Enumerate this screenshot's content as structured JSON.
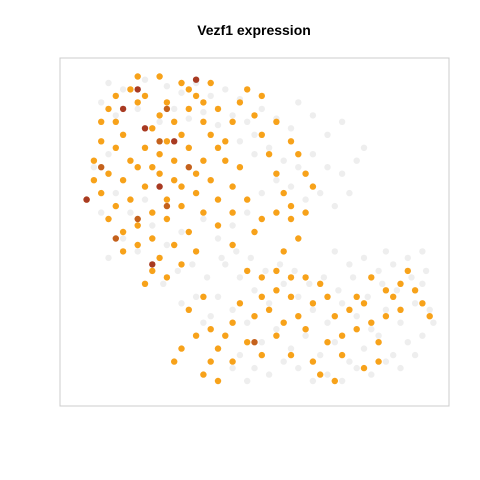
{
  "chart_data": {
    "type": "scatter",
    "title": "Vezf1 expression",
    "xlabel": "",
    "ylabel": "",
    "xlim": [
      0,
      100
    ],
    "ylim": [
      0,
      100
    ],
    "grid": false,
    "axes_ticks": false,
    "legend": "none",
    "colors": {
      "background_cells": "#eeeeee",
      "expressed": "#f7a21a",
      "high": "#a83a22",
      "mid": "#c4611c",
      "frame": "#cccccc"
    },
    "series": [
      {
        "level": "low",
        "color": "#eeeeee",
        "points": [
          [
            10,
            96
          ],
          [
            14,
            94
          ],
          [
            20,
            97
          ],
          [
            26,
            95
          ],
          [
            30,
            93
          ],
          [
            34,
            96
          ],
          [
            38,
            92
          ],
          [
            42,
            94
          ],
          [
            46,
            91
          ],
          [
            8,
            90
          ],
          [
            12,
            86
          ],
          [
            18,
            88
          ],
          [
            24,
            84
          ],
          [
            28,
            88
          ],
          [
            32,
            85
          ],
          [
            36,
            87
          ],
          [
            40,
            83
          ],
          [
            44,
            86
          ],
          [
            48,
            84
          ],
          [
            50,
            80
          ],
          [
            52,
            88
          ],
          [
            56,
            85
          ],
          [
            60,
            82
          ],
          [
            62,
            90
          ],
          [
            66,
            86
          ],
          [
            70,
            80
          ],
          [
            74,
            84
          ],
          [
            46,
            78
          ],
          [
            50,
            74
          ],
          [
            54,
            76
          ],
          [
            58,
            72
          ],
          [
            62,
            70
          ],
          [
            66,
            74
          ],
          [
            70,
            70
          ],
          [
            74,
            68
          ],
          [
            78,
            72
          ],
          [
            80,
            76
          ],
          [
            56,
            66
          ],
          [
            60,
            64
          ],
          [
            64,
            60
          ],
          [
            68,
            62
          ],
          [
            72,
            58
          ],
          [
            76,
            62
          ],
          [
            52,
            62
          ],
          [
            48,
            56
          ],
          [
            44,
            52
          ],
          [
            40,
            48
          ],
          [
            36,
            54
          ],
          [
            30,
            50
          ],
          [
            26,
            46
          ],
          [
            22,
            52
          ],
          [
            18,
            44
          ],
          [
            14,
            48
          ],
          [
            10,
            42
          ],
          [
            16,
            56
          ],
          [
            20,
            60
          ],
          [
            12,
            62
          ],
          [
            8,
            56
          ],
          [
            6,
            70
          ],
          [
            10,
            74
          ],
          [
            42,
            40
          ],
          [
            46,
            36
          ],
          [
            50,
            32
          ],
          [
            54,
            28
          ],
          [
            58,
            34
          ],
          [
            62,
            30
          ],
          [
            66,
            26
          ],
          [
            70,
            22
          ],
          [
            74,
            28
          ],
          [
            78,
            24
          ],
          [
            82,
            20
          ],
          [
            86,
            26
          ],
          [
            90,
            22
          ],
          [
            94,
            28
          ],
          [
            96,
            34
          ],
          [
            98,
            26
          ],
          [
            92,
            16
          ],
          [
            88,
            12
          ],
          [
            84,
            18
          ],
          [
            80,
            14
          ],
          [
            76,
            10
          ],
          [
            72,
            16
          ],
          [
            68,
            12
          ],
          [
            64,
            18
          ],
          [
            60,
            14
          ],
          [
            56,
            20
          ],
          [
            52,
            16
          ],
          [
            48,
            22
          ],
          [
            44,
            26
          ],
          [
            40,
            30
          ],
          [
            38,
            24
          ],
          [
            42,
            18
          ],
          [
            46,
            12
          ],
          [
            50,
            8
          ],
          [
            54,
            6
          ],
          [
            58,
            10
          ],
          [
            62,
            8
          ],
          [
            66,
            4
          ],
          [
            70,
            6
          ],
          [
            74,
            4
          ],
          [
            78,
            8
          ],
          [
            82,
            6
          ],
          [
            86,
            10
          ],
          [
            90,
            8
          ],
          [
            94,
            12
          ],
          [
            96,
            18
          ],
          [
            99,
            22
          ],
          [
            97,
            38
          ],
          [
            93,
            36
          ],
          [
            89,
            32
          ],
          [
            85,
            34
          ],
          [
            81,
            30
          ],
          [
            77,
            36
          ],
          [
            73,
            32
          ],
          [
            69,
            36
          ],
          [
            65,
            34
          ],
          [
            61,
            38
          ],
          [
            57,
            40
          ],
          [
            53,
            38
          ],
          [
            49,
            42
          ],
          [
            45,
            44
          ],
          [
            41,
            42
          ],
          [
            37,
            36
          ],
          [
            33,
            40
          ],
          [
            29,
            38
          ],
          [
            25,
            34
          ],
          [
            34,
            30
          ],
          [
            30,
            28
          ],
          [
            36,
            22
          ],
          [
            40,
            14
          ],
          [
            44,
            8
          ],
          [
            48,
            4
          ],
          [
            84,
            38
          ],
          [
            88,
            40
          ],
          [
            92,
            42
          ],
          [
            96,
            44
          ],
          [
            86,
            44
          ],
          [
            80,
            42
          ],
          [
            76,
            40
          ],
          [
            72,
            44
          ]
        ]
      },
      {
        "level": "expressed",
        "color": "#f7a21a",
        "points": [
          [
            10,
            88
          ],
          [
            12,
            84
          ],
          [
            14,
            80
          ],
          [
            8,
            78
          ],
          [
            6,
            72
          ],
          [
            10,
            68
          ],
          [
            14,
            66
          ],
          [
            18,
            70
          ],
          [
            20,
            76
          ],
          [
            22,
            82
          ],
          [
            24,
            86
          ],
          [
            18,
            90
          ],
          [
            16,
            94
          ],
          [
            20,
            92
          ],
          [
            26,
            90
          ],
          [
            28,
            84
          ],
          [
            30,
            80
          ],
          [
            32,
            76
          ],
          [
            28,
            72
          ],
          [
            24,
            68
          ],
          [
            20,
            64
          ],
          [
            16,
            60
          ],
          [
            12,
            58
          ],
          [
            8,
            62
          ],
          [
            6,
            66
          ],
          [
            4,
            60
          ],
          [
            10,
            54
          ],
          [
            14,
            50
          ],
          [
            18,
            52
          ],
          [
            22,
            56
          ],
          [
            26,
            60
          ],
          [
            30,
            64
          ],
          [
            34,
            68
          ],
          [
            36,
            72
          ],
          [
            32,
            88
          ],
          [
            34,
            92
          ],
          [
            36,
            84
          ],
          [
            38,
            80
          ],
          [
            40,
            76
          ],
          [
            42,
            72
          ],
          [
            38,
            66
          ],
          [
            34,
            62
          ],
          [
            30,
            58
          ],
          [
            26,
            54
          ],
          [
            22,
            48
          ],
          [
            18,
            46
          ],
          [
            14,
            44
          ],
          [
            24,
            42
          ],
          [
            28,
            46
          ],
          [
            32,
            50
          ],
          [
            36,
            56
          ],
          [
            40,
            60
          ],
          [
            44,
            64
          ],
          [
            46,
            70
          ],
          [
            42,
            78
          ],
          [
            44,
            84
          ],
          [
            40,
            88
          ],
          [
            46,
            90
          ],
          [
            38,
            96
          ],
          [
            30,
            96
          ],
          [
            24,
            98
          ],
          [
            18,
            98
          ],
          [
            12,
            92
          ],
          [
            8,
            84
          ],
          [
            50,
            86
          ],
          [
            52,
            80
          ],
          [
            54,
            74
          ],
          [
            56,
            68
          ],
          [
            58,
            62
          ],
          [
            60,
            58
          ],
          [
            48,
            60
          ],
          [
            44,
            56
          ],
          [
            40,
            52
          ],
          [
            48,
            94
          ],
          [
            52,
            92
          ],
          [
            56,
            84
          ],
          [
            60,
            78
          ],
          [
            62,
            74
          ],
          [
            64,
            68
          ],
          [
            66,
            64
          ],
          [
            64,
            56
          ],
          [
            60,
            54
          ],
          [
            56,
            56
          ],
          [
            52,
            54
          ],
          [
            50,
            50
          ],
          [
            44,
            46
          ],
          [
            34,
            44
          ],
          [
            30,
            40
          ],
          [
            26,
            36
          ],
          [
            22,
            38
          ],
          [
            20,
            34
          ],
          [
            48,
            38
          ],
          [
            52,
            36
          ],
          [
            56,
            32
          ],
          [
            60,
            30
          ],
          [
            62,
            24
          ],
          [
            58,
            22
          ],
          [
            54,
            26
          ],
          [
            50,
            24
          ],
          [
            46,
            28
          ],
          [
            44,
            22
          ],
          [
            42,
            18
          ],
          [
            40,
            14
          ],
          [
            38,
            10
          ],
          [
            36,
            6
          ],
          [
            40,
            4
          ],
          [
            44,
            10
          ],
          [
            48,
            16
          ],
          [
            52,
            12
          ],
          [
            56,
            18
          ],
          [
            60,
            12
          ],
          [
            64,
            20
          ],
          [
            66,
            28
          ],
          [
            68,
            34
          ],
          [
            70,
            30
          ],
          [
            72,
            24
          ],
          [
            74,
            18
          ],
          [
            76,
            26
          ],
          [
            70,
            16
          ],
          [
            66,
            10
          ],
          [
            68,
            6
          ],
          [
            72,
            4
          ],
          [
            74,
            12
          ],
          [
            78,
            20
          ],
          [
            80,
            28
          ],
          [
            82,
            22
          ],
          [
            84,
            16
          ],
          [
            86,
            24
          ],
          [
            88,
            30
          ],
          [
            90,
            34
          ],
          [
            92,
            38
          ],
          [
            94,
            32
          ],
          [
            96,
            28
          ],
          [
            98,
            24
          ],
          [
            90,
            26
          ],
          [
            86,
            32
          ],
          [
            82,
            36
          ],
          [
            78,
            30
          ],
          [
            84,
            10
          ],
          [
            80,
            8
          ],
          [
            64,
            36
          ],
          [
            60,
            36
          ],
          [
            56,
            38
          ],
          [
            52,
            30
          ],
          [
            36,
            30
          ],
          [
            32,
            26
          ],
          [
            34,
            18
          ],
          [
            38,
            20
          ],
          [
            30,
            14
          ],
          [
            28,
            10
          ],
          [
            62,
            48
          ],
          [
            58,
            44
          ],
          [
            24,
            74
          ],
          [
            26,
            78
          ],
          [
            12,
            76
          ],
          [
            16,
            72
          ],
          [
            22,
            70
          ],
          [
            28,
            66
          ],
          [
            32,
            94
          ],
          [
            36,
            90
          ]
        ]
      },
      {
        "level": "mid",
        "color": "#c4611c",
        "points": [
          [
            12,
            48
          ],
          [
            26,
            88
          ],
          [
            18,
            54
          ],
          [
            32,
            70
          ],
          [
            26,
            58
          ],
          [
            50,
            16
          ],
          [
            8,
            70
          ],
          [
            24,
            78
          ]
        ]
      },
      {
        "level": "high",
        "color": "#a83a22",
        "points": [
          [
            18,
            94
          ],
          [
            34,
            97
          ],
          [
            20,
            82
          ],
          [
            28,
            78
          ],
          [
            4,
            60
          ],
          [
            24,
            64
          ],
          [
            14,
            88
          ],
          [
            22,
            40
          ]
        ]
      }
    ]
  }
}
